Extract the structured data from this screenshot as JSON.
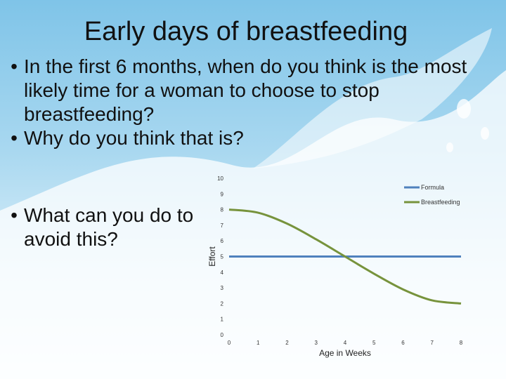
{
  "slide": {
    "title": "Early days of breastfeeding",
    "bullets": [
      {
        "text": "In the first 6 months, when do you think is the most likely time for a woman to choose to stop breastfeeding?"
      },
      {
        "text": "Why do you think that is?"
      }
    ],
    "bullet_bottom": {
      "text": "What can you do to avoid this?"
    },
    "bullet_char": "•"
  },
  "chart_data": {
    "type": "line",
    "xlabel": "Age in Weeks",
    "ylabel": "Effort",
    "xlim": [
      0,
      8
    ],
    "ylim": [
      0,
      10
    ],
    "x_ticks": [
      0,
      1,
      2,
      3,
      4,
      5,
      6,
      7,
      8
    ],
    "y_ticks": [
      0,
      1,
      2,
      3,
      4,
      5,
      6,
      7,
      8,
      9,
      10
    ],
    "grid": false,
    "legend": "top-right",
    "series": [
      {
        "name": "Formula",
        "color": "#4f81bd",
        "x": [
          0,
          1,
          2,
          3,
          4,
          5,
          6,
          7,
          8
        ],
        "y": [
          5,
          5,
          5,
          5,
          5,
          5,
          5,
          5,
          5
        ]
      },
      {
        "name": "Breastfeeding",
        "color": "#77933c",
        "x": [
          0,
          1,
          2,
          3,
          4,
          5,
          6,
          7,
          8
        ],
        "y": [
          8,
          7.8,
          7.1,
          6.1,
          5,
          3.9,
          2.9,
          2.2,
          2
        ]
      }
    ]
  }
}
